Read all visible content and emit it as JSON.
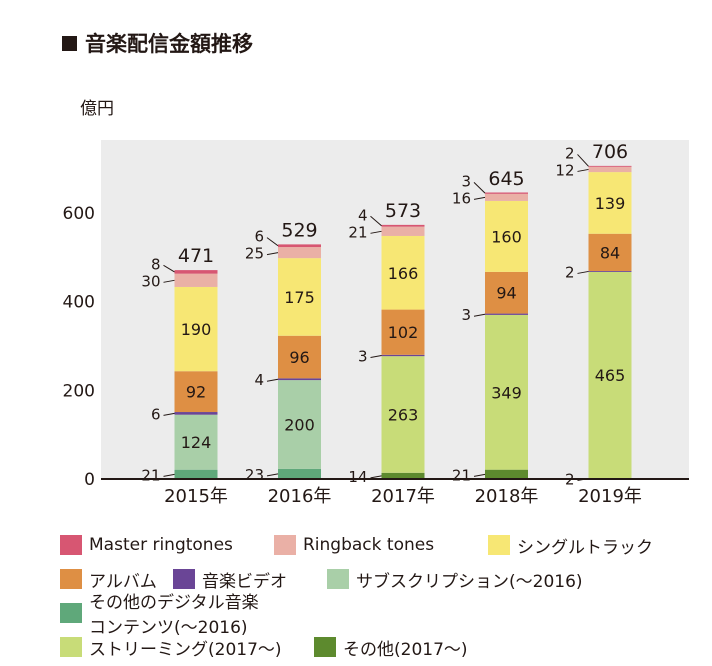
{
  "title": "音楽配信金額推移",
  "chart_data": {
    "type": "bar",
    "stacked": true,
    "ylabel": "億円",
    "xlabel": "",
    "ylim": [
      0,
      700
    ],
    "yticks": [
      0,
      200,
      400,
      600
    ],
    "categories": [
      "2015年",
      "2016年",
      "2017年",
      "2018年",
      "2019年"
    ],
    "totals": [
      471,
      529,
      573,
      645,
      706
    ],
    "series": [
      {
        "name": "その他のデジタル音楽コンテンツ(～2016)",
        "color": "#5fa87a",
        "values": [
          21,
          23,
          0,
          0,
          0
        ]
      },
      {
        "name": "その他(2017～)",
        "color": "#5d8a2e",
        "values": [
          0,
          0,
          14,
          21,
          2
        ]
      },
      {
        "name": "ストリーミング(2017～)",
        "color": "#c8dc78",
        "values": [
          0,
          0,
          263,
          349,
          465
        ]
      },
      {
        "name": "サブスクリプション(～2016)",
        "color": "#a9cfa8",
        "values": [
          124,
          200,
          0,
          0,
          0
        ]
      },
      {
        "name": "音楽ビデオ",
        "color": "#6a4596",
        "values": [
          6,
          4,
          3,
          3,
          2
        ]
      },
      {
        "name": "アルバム",
        "color": "#de8f44",
        "values": [
          92,
          96,
          102,
          94,
          84
        ]
      },
      {
        "name": "シングルトラック",
        "color": "#f7e774",
        "values": [
          190,
          175,
          166,
          160,
          139
        ]
      },
      {
        "name": "Ringback tones",
        "color": "#eab0a6",
        "values": [
          30,
          25,
          21,
          16,
          12
        ]
      },
      {
        "name": "Master ringtones",
        "color": "#d75672",
        "values": [
          8,
          6,
          4,
          3,
          2
        ]
      }
    ],
    "legend_order": [
      [
        "Master ringtones",
        "Ringback tones",
        "シングルトラック"
      ],
      [
        "アルバム",
        "音楽ビデオ",
        "サブスクリプション(～2016)"
      ],
      [
        "その他のデジタル音楽コンテンツ(～2016)"
      ],
      [
        "ストリーミング(2017～)",
        "その他(2017～)"
      ]
    ],
    "legend_position": "bottom",
    "grid": false
  }
}
